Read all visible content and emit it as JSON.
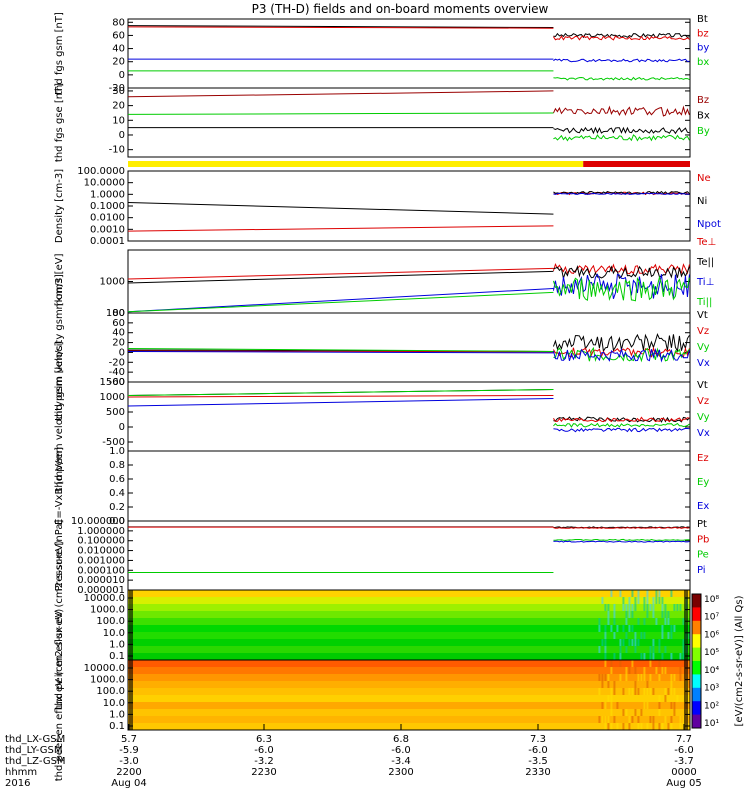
{
  "title": "P3 (TH-D) fields and on-board moments overview",
  "colors": {
    "black": "#000000",
    "red": "#dd0000",
    "green": "#00cc00",
    "blue": "#0000dd",
    "darkred": "#990000",
    "yellow": "#ffee00"
  },
  "chart_data": [
    {
      "type": "line",
      "name": "fgs_gsm",
      "ylabel": "thd fgs gsm [nT]",
      "ylim": [
        -20,
        85
      ],
      "yticks": [
        "80",
        "60",
        "40",
        "20",
        "0",
        "-20"
      ],
      "series": [
        {
          "name": "Bt",
          "color": "black",
          "y0": 75,
          "y1": 72,
          "after": 60,
          "noise": 3
        },
        {
          "name": "bz",
          "color": "red",
          "y0": 73,
          "y1": 71,
          "after": 56,
          "noise": 3
        },
        {
          "name": "by",
          "color": "blue",
          "y0": 24,
          "y1": 24,
          "after": 22,
          "noise": 2
        },
        {
          "name": "bx",
          "color": "green",
          "y0": 6,
          "y1": 6,
          "after": -6,
          "noise": 2
        }
      ]
    },
    {
      "type": "line",
      "name": "fgs_gse",
      "ylabel": "thd fgs gse [nT]",
      "ylim": [
        -15,
        32
      ],
      "yticks": [
        "30",
        "20",
        "10",
        "0",
        "-10"
      ],
      "series": [
        {
          "name": "Bz",
          "color": "darkred",
          "y0": 26,
          "y1": 30,
          "after": 16,
          "noise": 3
        },
        {
          "name": "Bx",
          "color": "black",
          "y0": 5,
          "y1": 5,
          "after": 3,
          "noise": 2
        },
        {
          "name": "By",
          "color": "green",
          "y0": 14,
          "y1": 15,
          "after": -2,
          "noise": 2
        }
      ]
    },
    {
      "type": "line",
      "name": "density",
      "log": true,
      "ylabel": "Density [cm-3]",
      "ylim": [
        0.0001,
        100
      ],
      "yticks": [
        "100.0000",
        "10.0000",
        "1.0000",
        "0.1000",
        "0.0100",
        "0.0010",
        "0.0001"
      ],
      "series": [
        {
          "name": "Ne",
          "color": "red",
          "y0": 0.0007,
          "y1": 0.002,
          "after": 1.2,
          "noise": 0.1
        },
        {
          "name": "Ni",
          "color": "black",
          "y0": 0.2,
          "y1": 0.02,
          "after": 1.4,
          "noise": 0.1
        },
        {
          "name": "Npot",
          "color": "blue",
          "y0": null,
          "y1": null,
          "after": 1.1,
          "noise": 0.05
        }
      ]
    },
    {
      "type": "line",
      "name": "temperature",
      "log": true,
      "ylabel": "mom3 [eV]",
      "ylim": [
        100,
        10000
      ],
      "yticks": [
        "1000",
        "100"
      ],
      "series": [
        {
          "name": "Te⊥",
          "color": "red",
          "y0": 1200,
          "y1": 2600,
          "after": 2500,
          "noise": 0.15
        },
        {
          "name": "Te||",
          "color": "black",
          "y0": 900,
          "y1": 2100,
          "after": 1900,
          "noise": 0.2
        },
        {
          "name": "Ti⊥",
          "color": "blue",
          "y0": 110,
          "y1": 600,
          "after": 700,
          "noise": 0.4
        },
        {
          "name": "Ti||",
          "color": "green",
          "y0": 110,
          "y1": 450,
          "after": 550,
          "noise": 0.4
        }
      ]
    },
    {
      "type": "line",
      "name": "peim_velocity",
      "ylabel": "thd peim velocity gsm [km/s]",
      "ylim": [
        -60,
        80
      ],
      "yticks": [
        "80",
        "60",
        "40",
        "20",
        "0",
        "-20",
        "-40",
        "-60"
      ],
      "series": [
        {
          "name": "Vt",
          "color": "black",
          "y0": 5,
          "y1": 2,
          "after": 20,
          "noise": 18
        },
        {
          "name": "Vz",
          "color": "red",
          "y0": 3,
          "y1": 1,
          "after": 0,
          "noise": 10
        },
        {
          "name": "Vy",
          "color": "green",
          "y0": 8,
          "y1": 2,
          "after": -5,
          "noise": 14
        },
        {
          "name": "Vx",
          "color": "blue",
          "y0": 2,
          "y1": -1,
          "after": -5,
          "noise": 12
        }
      ]
    },
    {
      "type": "line",
      "name": "peem_velocity",
      "ylabel": "thd peem velocity gsm [km/s]",
      "ylim": [
        -800,
        1500
      ],
      "yticks": [
        "1500",
        "1000",
        "500",
        "0",
        "-500"
      ],
      "series": [
        {
          "name": "Vt",
          "color": "black",
          "y0": 1050,
          "y1": 1250,
          "after": 250,
          "noise": 80
        },
        {
          "name": "Vz",
          "color": "red",
          "y0": 1000,
          "y1": 1050,
          "after": 250,
          "noise": 70
        },
        {
          "name": "Vy",
          "color": "green",
          "y0": 1050,
          "y1": 1250,
          "after": 60,
          "noise": 60
        },
        {
          "name": "Vx",
          "color": "blue",
          "y0": 700,
          "y1": 950,
          "after": -100,
          "noise": 60
        }
      ]
    },
    {
      "type": "line",
      "name": "efield",
      "ylabel": "E=-VxB [mV/m]",
      "ylim": [
        0.0,
        1.0
      ],
      "yticks": [
        "1.0",
        "0.8",
        "0.6",
        "0.4",
        "0.2",
        "0.0"
      ],
      "series": [
        {
          "name": "Ez",
          "color": "red"
        },
        {
          "name": "Ey",
          "color": "green"
        },
        {
          "name": "Ex",
          "color": "blue"
        }
      ]
    },
    {
      "type": "line",
      "name": "pressure",
      "log": true,
      "ylabel": "Pressure [nPa]",
      "ylim": [
        1e-06,
        10
      ],
      "yticks": [
        "10.000000",
        "1.000000",
        "0.100000",
        "0.010000",
        "0.001000",
        "0.000100",
        "0.000010",
        "0.000001"
      ],
      "series": [
        {
          "name": "Pt",
          "color": "black",
          "y0": 2.5,
          "y1": 2.5,
          "after": 2.3,
          "noise": 0.05
        },
        {
          "name": "Pb",
          "color": "red",
          "y0": 2.4,
          "y1": 2.4,
          "after": 2.0,
          "noise": 0.05
        },
        {
          "name": "Pe",
          "color": "green",
          "y0": 6e-05,
          "y1": 6e-05,
          "after": 0.12,
          "noise": 0.05
        },
        {
          "name": "Pi",
          "color": "blue",
          "y0": null,
          "y1": null,
          "after": 0.08,
          "noise": 0.05
        }
      ]
    },
    {
      "type": "heatmap",
      "name": "peir_en_eflux",
      "ylabel": "thd peir en eflux eV (cm2-s-sr-eV)",
      "yticks": [
        "10000.0",
        "1000.0",
        "100.0",
        "10.0",
        "1.0",
        "0.1"
      ]
    },
    {
      "type": "heatmap",
      "name": "peer_en_eflux",
      "ylabel": "thd peer en eflux eV (cm2-s-sr-eV)",
      "yticks": [
        "10000.0",
        "1000.0",
        "100.0",
        "10.0",
        "1.0",
        "0.1"
      ]
    }
  ],
  "colorbar": {
    "label": "[eV/(cm2-s-sr-eV)] (All Qs)",
    "ticks": [
      "10⁸",
      "10⁷",
      "10⁶",
      "10⁵",
      "10⁴",
      "10³",
      "10²",
      "10¹"
    ]
  },
  "mode_bar": {
    "yellow_until": 0.81
  },
  "xaxis": {
    "rows": [
      {
        "label": "thd_LX-GSM",
        "values": [
          "5.7",
          "6.3",
          "6.8",
          "7.3",
          "7.7"
        ]
      },
      {
        "label": "thd_LY-GSM",
        "values": [
          "-5.9",
          "-6.0",
          "-6.0",
          "-6.0",
          "-6.0"
        ]
      },
      {
        "label": "thd_LZ-GSM",
        "values": [
          "-3.0",
          "-3.2",
          "-3.4",
          "-3.5",
          "-3.7"
        ]
      },
      {
        "label": "hhmm",
        "values": [
          "2200",
          "2230",
          "2300",
          "2330",
          "0000"
        ]
      },
      {
        "label": "2016",
        "values": [
          "Aug 04",
          "",
          "",
          "",
          "Aug 05"
        ]
      }
    ]
  },
  "event_fraction": 0.757
}
